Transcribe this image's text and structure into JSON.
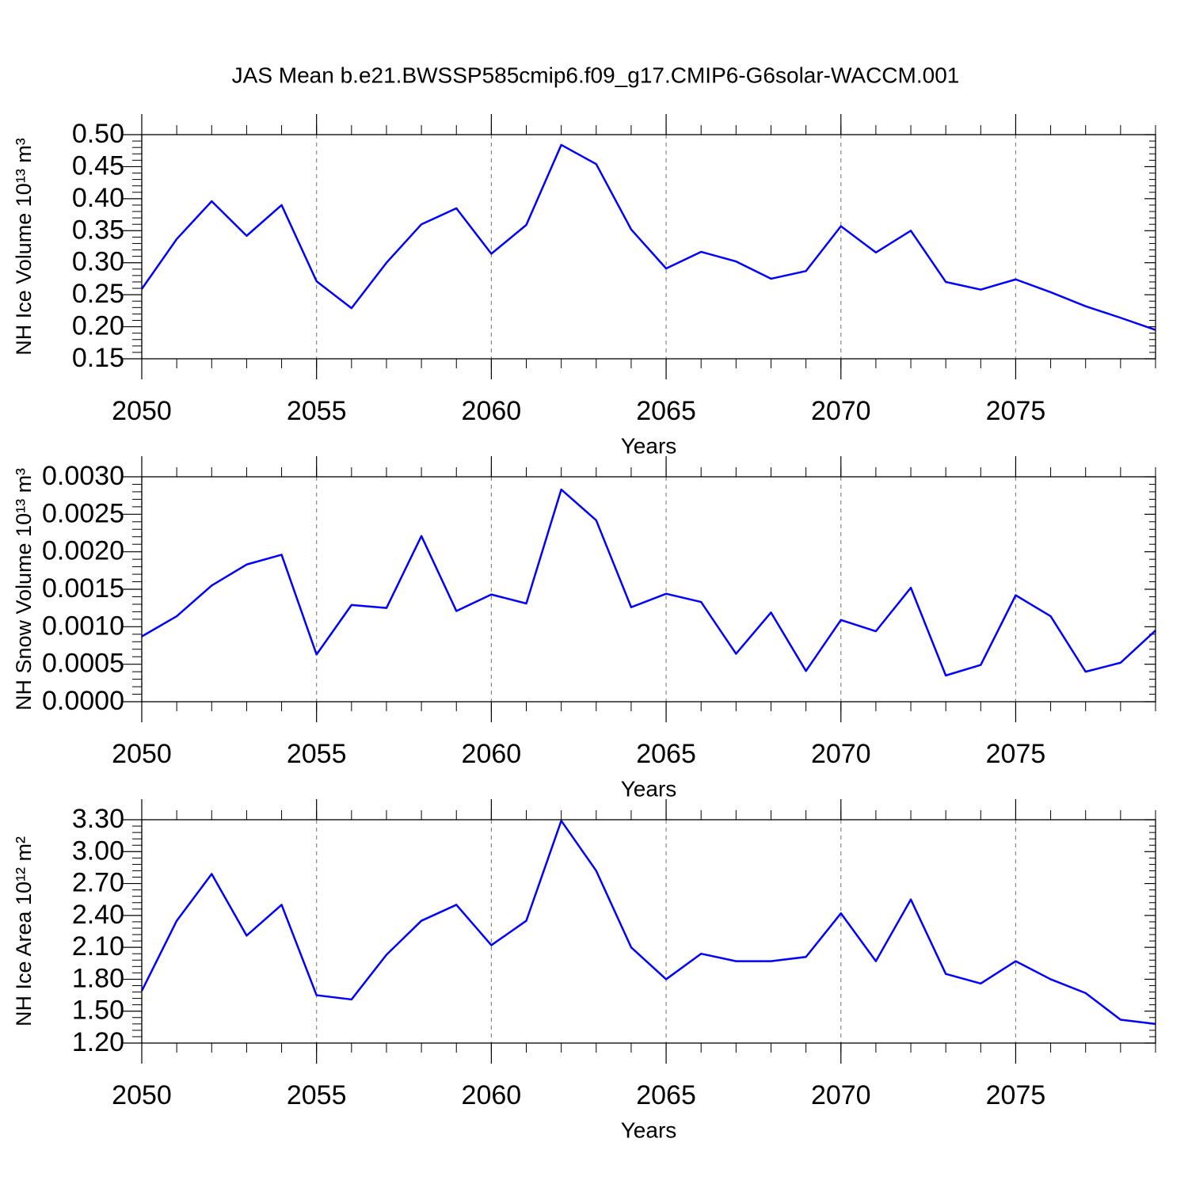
{
  "chart_data": [
    {
      "type": "line",
      "title": "JAS Mean b.e21.BWSSP585cmip6.f09_g17.CMIP6-G6solar-WACCM.001",
      "xlabel": "Years",
      "ylabel": "NH Ice Volume 10¹³ m³",
      "color": "#0000ff",
      "grid": true,
      "x": [
        2050,
        2051,
        2052,
        2053,
        2054,
        2055,
        2056,
        2057,
        2058,
        2059,
        2060,
        2061,
        2062,
        2063,
        2064,
        2065,
        2066,
        2067,
        2068,
        2069,
        2070,
        2071,
        2072,
        2073,
        2074,
        2075,
        2076,
        2077,
        2078,
        2079
      ],
      "values": [
        0.259,
        0.337,
        0.396,
        0.342,
        0.39,
        0.271,
        0.229,
        0.3,
        0.36,
        0.385,
        0.314,
        0.359,
        0.484,
        0.454,
        0.352,
        0.291,
        0.317,
        0.302,
        0.275,
        0.287,
        0.357,
        0.316,
        0.35,
        0.27,
        0.258,
        0.274,
        0.254,
        0.232,
        0.214,
        0.195
      ],
      "xlim": [
        2050,
        2079
      ],
      "xticks": [
        2050,
        2055,
        2060,
        2065,
        2070,
        2075
      ],
      "ylim": [
        0.15,
        0.5
      ],
      "yticks": [
        {
          "value": 0.15,
          "label": "0.15"
        },
        {
          "value": 0.2,
          "label": "0.20"
        },
        {
          "value": 0.25,
          "label": "0.25"
        },
        {
          "value": 0.3,
          "label": "0.30"
        },
        {
          "value": 0.35,
          "label": "0.35"
        },
        {
          "value": 0.4,
          "label": "0.40"
        },
        {
          "value": 0.45,
          "label": "0.45"
        },
        {
          "value": 0.5,
          "label": "0.50"
        }
      ]
    },
    {
      "type": "line",
      "xlabel": "Years",
      "ylabel": "NH Snow Volume 10¹³ m³",
      "color": "#0000ff",
      "grid": true,
      "x": [
        2050,
        2051,
        2052,
        2053,
        2054,
        2055,
        2056,
        2057,
        2058,
        2059,
        2060,
        2061,
        2062,
        2063,
        2064,
        2065,
        2066,
        2067,
        2068,
        2069,
        2070,
        2071,
        2072,
        2073,
        2074,
        2075,
        2076,
        2077,
        2078,
        2079
      ],
      "values": [
        0.00087,
        0.00114,
        0.00155,
        0.00183,
        0.00196,
        0.00063,
        0.00129,
        0.00125,
        0.00221,
        0.00121,
        0.00143,
        0.00131,
        0.00283,
        0.00242,
        0.00126,
        0.00144,
        0.00133,
        0.00064,
        0.00119,
        0.00041,
        0.00109,
        0.00094,
        0.00152,
        0.00035,
        0.00049,
        0.00142,
        0.00114,
        0.0004,
        0.00052,
        0.00095
      ],
      "xlim": [
        2050,
        2079
      ],
      "xticks": [
        2050,
        2055,
        2060,
        2065,
        2070,
        2075
      ],
      "ylim": [
        0,
        0.003
      ],
      "yticks": [
        {
          "value": 0,
          "label": "0.0000"
        },
        {
          "value": 0.0005,
          "label": "0.0005"
        },
        {
          "value": 0.001,
          "label": "0.0010"
        },
        {
          "value": 0.0015,
          "label": "0.0015"
        },
        {
          "value": 0.002,
          "label": "0.0020"
        },
        {
          "value": 0.0025,
          "label": "0.0025"
        },
        {
          "value": 0.003,
          "label": "0.0030"
        }
      ]
    },
    {
      "type": "line",
      "xlabel": "Years",
      "ylabel": "NH Ice Area 10¹² m²",
      "color": "#0000ff",
      "grid": true,
      "x": [
        2050,
        2051,
        2052,
        2053,
        2054,
        2055,
        2056,
        2057,
        2058,
        2059,
        2060,
        2061,
        2062,
        2063,
        2064,
        2065,
        2066,
        2067,
        2068,
        2069,
        2070,
        2071,
        2072,
        2073,
        2074,
        2075,
        2076,
        2077,
        2078,
        2079
      ],
      "values": [
        1.69,
        2.35,
        2.79,
        2.21,
        2.5,
        1.65,
        1.61,
        2.03,
        2.35,
        2.5,
        2.12,
        2.35,
        3.29,
        2.82,
        2.1,
        1.8,
        2.04,
        1.97,
        1.97,
        2.01,
        2.42,
        1.97,
        2.55,
        1.85,
        1.76,
        1.97,
        1.8,
        1.67,
        1.42,
        1.38
      ],
      "xlim": [
        2050,
        2079
      ],
      "xticks": [
        2050,
        2055,
        2060,
        2065,
        2070,
        2075
      ],
      "ylim": [
        1.2,
        3.3
      ],
      "yticks": [
        {
          "value": 1.2,
          "label": "1.20"
        },
        {
          "value": 1.5,
          "label": "1.50"
        },
        {
          "value": 1.8,
          "label": "1.80"
        },
        {
          "value": 2.1,
          "label": "2.10"
        },
        {
          "value": 2.4,
          "label": "2.40"
        },
        {
          "value": 2.7,
          "label": "2.70"
        },
        {
          "value": 3.0,
          "label": "3.00"
        },
        {
          "value": 3.3,
          "label": "3.30"
        }
      ]
    }
  ]
}
